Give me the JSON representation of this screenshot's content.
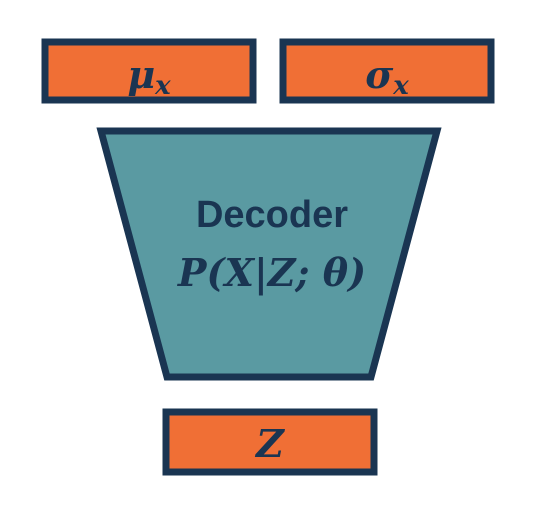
{
  "diagram": {
    "outputs": {
      "mean": {
        "symbol": "μ",
        "subscript": "x"
      },
      "stddev": {
        "symbol": "σ",
        "subscript": "x"
      }
    },
    "decoder": {
      "title": "Decoder",
      "formula": "P(X|Z; θ)"
    },
    "input": {
      "symbol": "Z"
    }
  },
  "colors": {
    "box_fill": "#f06f35",
    "decoder_fill": "#5a9aa2",
    "outline": "#1a3552"
  }
}
